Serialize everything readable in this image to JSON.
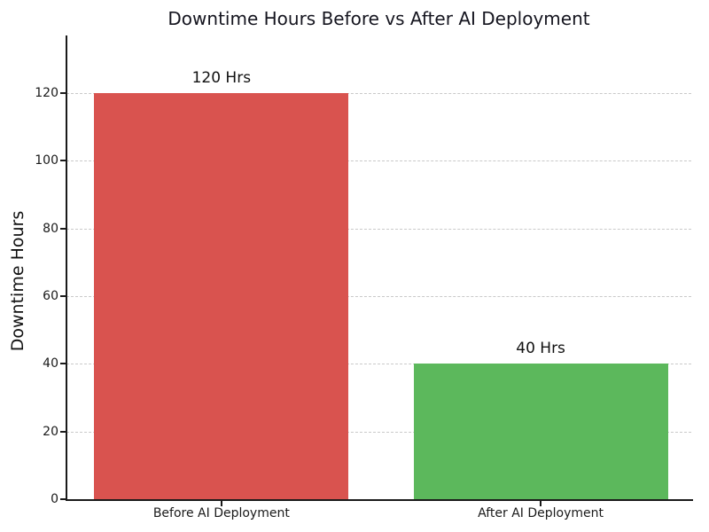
{
  "chart_data": {
    "type": "bar",
    "title": "Downtime Hours Before vs After AI Deployment",
    "ylabel": "Downtime Hours",
    "xlabel": "",
    "categories": [
      "Before AI Deployment",
      "After AI Deployment"
    ],
    "values": [
      120,
      40
    ],
    "bar_labels": [
      "120 Hrs",
      "40 Hrs"
    ],
    "bar_colors": [
      "#d9534f",
      "#5cb85c"
    ],
    "yticks": [
      0,
      20,
      40,
      60,
      80,
      100,
      120
    ],
    "ylim": [
      0,
      137
    ],
    "grid": "horizontal-dashed",
    "legend": "none",
    "background": "#ffffff",
    "text_color": "#15151f"
  }
}
